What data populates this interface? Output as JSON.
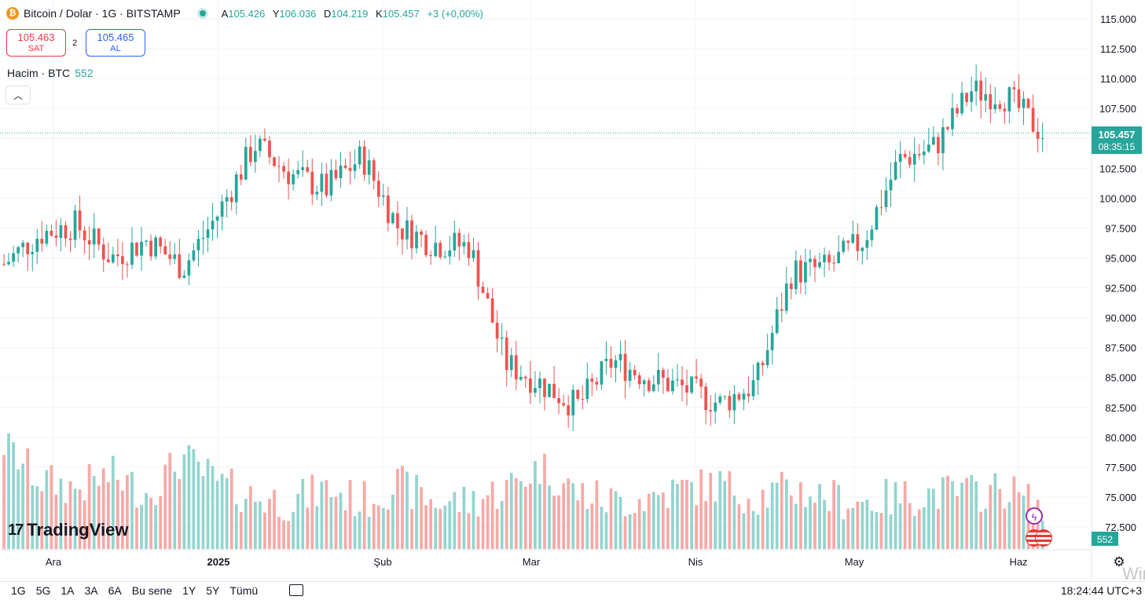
{
  "header": {
    "symbol_title": "Bitcoin / Dolar · 1G · BITSTAMP",
    "coin_icon": "btc-icon",
    "ohlc": [
      {
        "key": "A",
        "value": "105.426"
      },
      {
        "key": "Y",
        "value": "106.036"
      },
      {
        "key": "D",
        "value": "104.219"
      },
      {
        "key": "K",
        "value": "105.457"
      }
    ],
    "change": "+3 (+0,00%)"
  },
  "trade": {
    "sell_price": "105.463",
    "sell_label": "SAT",
    "spread": "2",
    "buy_price": "105.465",
    "buy_label": "AL"
  },
  "volume_label": {
    "name": "Hacim · BTC",
    "value": "552"
  },
  "logo_text": "TradingView",
  "bottom_bar": {
    "ranges": [
      "1G",
      "5G",
      "1A",
      "3A",
      "6A",
      "Bu sene",
      "1Y",
      "5Y",
      "Tümü"
    ],
    "clock": "18:24:44 UTC+3"
  },
  "watermark": "Win",
  "colors": {
    "up": "#26a69a",
    "down": "#ef5350",
    "vol_up": "#93d5cf",
    "vol_down": "#f7a9a7",
    "grid": "#f0f3fa"
  },
  "chart_data": {
    "type": "candlestick",
    "title": "Bitcoin / Dolar · 1G · BITSTAMP",
    "price_axis": {
      "ylim": [
        71000,
        116000
      ],
      "ticks": [
        "115.000",
        "112.500",
        "110.000",
        "107.500",
        "105.000",
        "102.500",
        "100.000",
        "97.500",
        "95.000",
        "92.500",
        "90.000",
        "87.500",
        "85.000",
        "82.500",
        "80.000",
        "77.500",
        "75.000",
        "72.500"
      ]
    },
    "x_axis_labels": [
      "Ara",
      "2025",
      "Şub",
      "Mar",
      "Nis",
      "May",
      "Haz"
    ],
    "last_price": {
      "value": "105.457",
      "countdown": "08:35:15"
    },
    "last_volume": "552",
    "weekly_close": [
      94500,
      97000,
      97800,
      95000,
      96500,
      94200,
      98800,
      104500,
      102000,
      100800,
      103500,
      97600,
      96200,
      96000,
      86200,
      84500,
      82600,
      86400,
      85000,
      84100,
      82800,
      84500,
      93800,
      94200,
      96500,
      103200,
      104300,
      109000,
      108500,
      105400
    ],
    "volume_levels": [
      0.95,
      0.55,
      0.45,
      0.6,
      0.4,
      0.8,
      0.5,
      0.35,
      0.3,
      0.45,
      0.3,
      0.5,
      0.3,
      0.3,
      0.45,
      0.7,
      0.4,
      0.3,
      0.35,
      0.45,
      0.5,
      0.35,
      0.45,
      0.35,
      0.3,
      0.35,
      0.4,
      0.4,
      0.45,
      0.2
    ],
    "legend": "Hacim · BTC"
  }
}
